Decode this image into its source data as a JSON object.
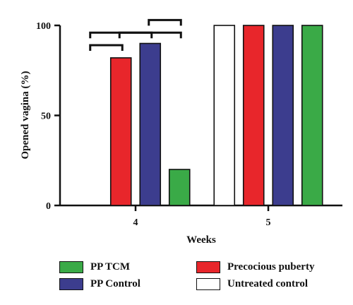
{
  "chart_data": {
    "type": "bar",
    "xlabel": "Weeks",
    "ylabel": "Opened vagina (%)",
    "ylim": [
      0,
      100
    ],
    "yticks": [
      0,
      50,
      100
    ],
    "categories": [
      "4",
      "5"
    ],
    "series": [
      {
        "name": "Untreated control",
        "color": "#ffffff",
        "values": [
          0,
          100
        ]
      },
      {
        "name": "Precocious puberty",
        "color": "#e8262b",
        "values": [
          82,
          100
        ]
      },
      {
        "name": "PP Control",
        "color": "#3c3d8e",
        "values": [
          90,
          100
        ]
      },
      {
        "name": "PP TCM",
        "color": "#3aaa47",
        "values": [
          20,
          100
        ]
      }
    ],
    "legend": [
      {
        "label": "PP TCM",
        "color": "#3aaa47"
      },
      {
        "label": "PP Control",
        "color": "#3c3d8e"
      },
      {
        "label": "Precocious puberty",
        "color": "#e8262b"
      },
      {
        "label": "Untreated control",
        "color": "#ffffff"
      }
    ],
    "legend_position": "bottom",
    "grid": false,
    "significance_brackets": [
      {
        "category": "4",
        "from": "Untreated control",
        "to": "Precocious puberty"
      },
      {
        "category": "4",
        "from": "Untreated control",
        "to": "PP Control"
      },
      {
        "category": "4",
        "from": "Precocious puberty",
        "to": "PP TCM"
      },
      {
        "category": "4",
        "from": "PP Control",
        "to": "PP TCM"
      }
    ]
  }
}
